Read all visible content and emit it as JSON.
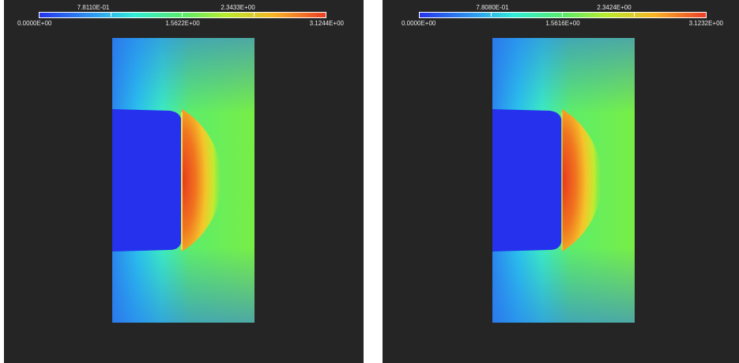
{
  "panels": [
    {
      "colorbar": {
        "min_label": "0.0000E+00",
        "q1_label": "7.8110E-01",
        "mid_label": "1.5622E+00",
        "q3_label": "2.3433E+00",
        "max_label": "3.1244E+00"
      }
    },
    {
      "colorbar": {
        "min_label": "0.0000E+00",
        "q1_label": "7.8080E-01",
        "mid_label": "1.5616E+00",
        "q3_label": "2.3424E+00",
        "max_label": "3.1232E+00"
      }
    }
  ],
  "colors": {
    "background": "#252525",
    "colormap": [
      "#2433ea",
      "#2ea0f0",
      "#31ecd8",
      "#58ec6a",
      "#b8ec2e",
      "#f6b426",
      "#ec3e26"
    ]
  }
}
